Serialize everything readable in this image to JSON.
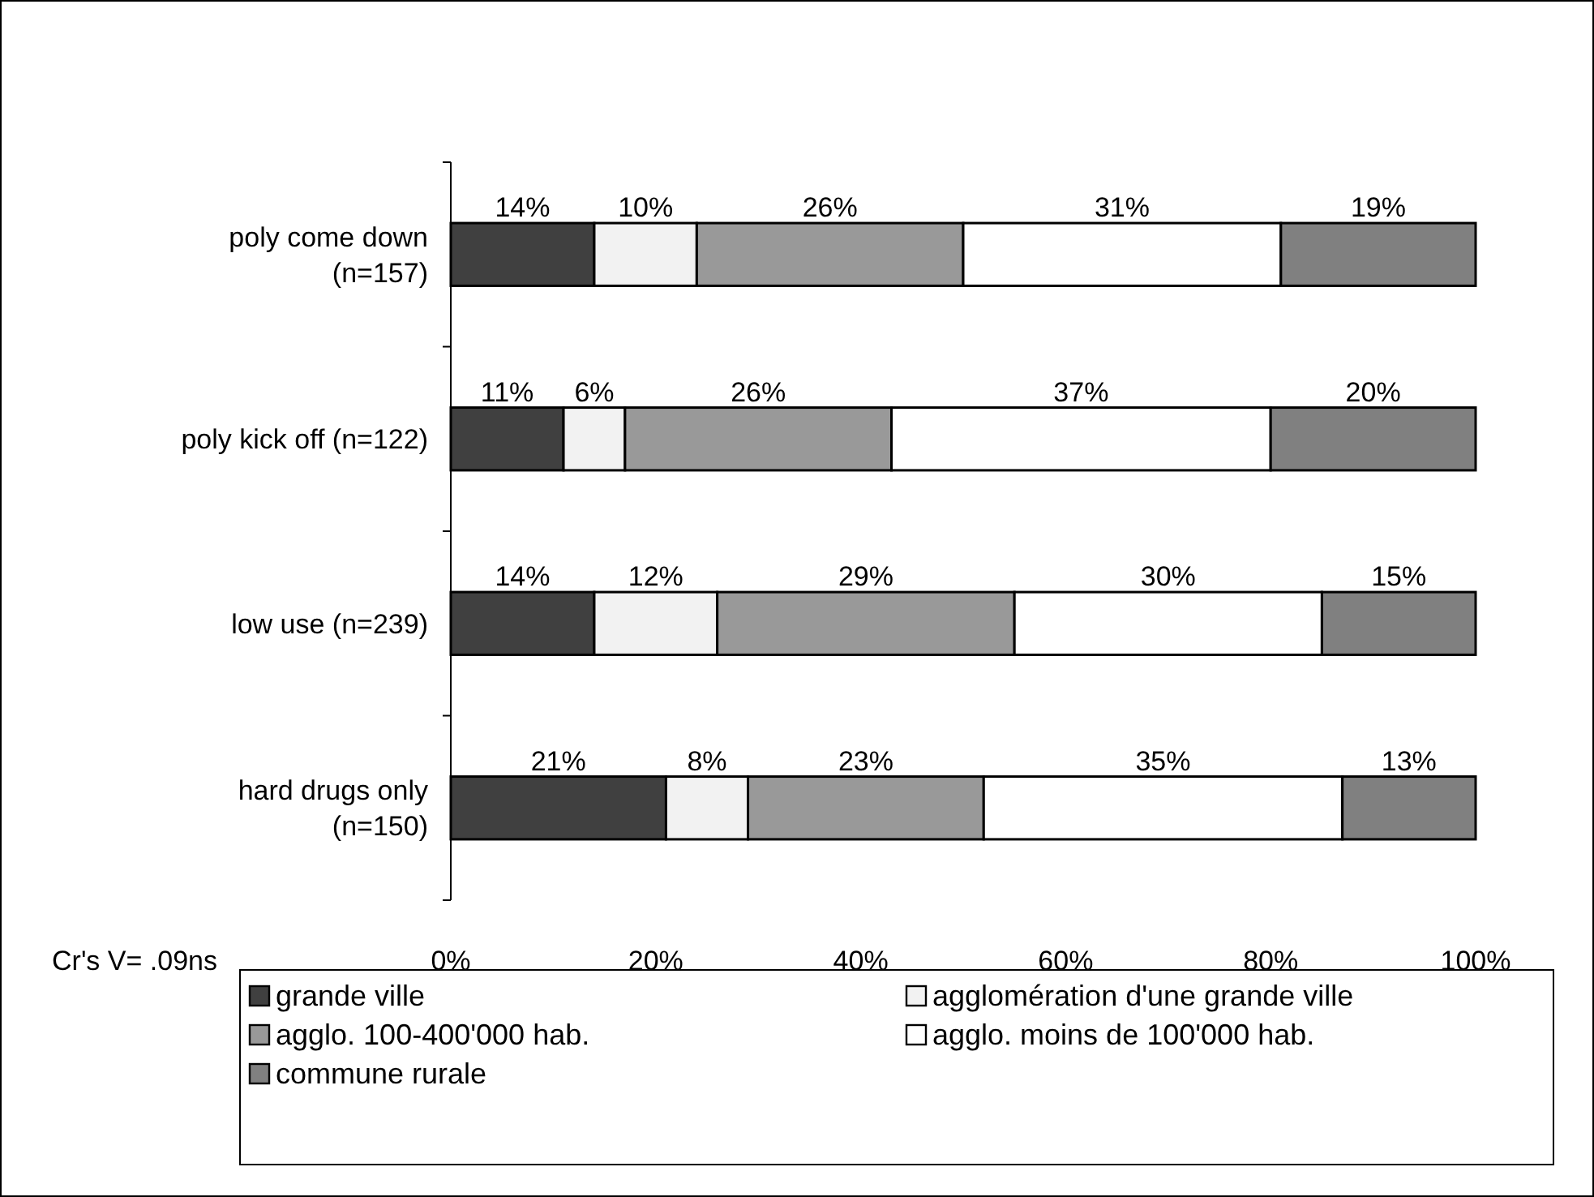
{
  "chart_data": {
    "type": "bar",
    "orientation": "horizontal",
    "stacked": true,
    "categories": [
      "poly come down (n=157)",
      "poly kick off (n=122)",
      "low use (n=239)",
      "hard drugs only (n=150)"
    ],
    "series": [
      {
        "name": "grande ville",
        "color": "#404040",
        "values": [
          14,
          11,
          14,
          21
        ],
        "value_labels": [
          "14%",
          "11%",
          "14%",
          "21%"
        ]
      },
      {
        "name": "agglomération d'une grande ville",
        "color": "#f2f2f2",
        "values": [
          10,
          6,
          12,
          8
        ],
        "value_labels": [
          "10%",
          "6%",
          "12%",
          "8%"
        ]
      },
      {
        "name": "agglo. 100-400'000 hab.",
        "color": "#999999",
        "values": [
          26,
          26,
          29,
          23
        ],
        "value_labels": [
          "26%",
          "26%",
          "29%",
          "23%"
        ]
      },
      {
        "name": "agglo. moins de 100'000 hab.",
        "color": "#ffffff",
        "values": [
          31,
          37,
          30,
          35
        ],
        "value_labels": [
          "31%",
          "37%",
          "30%",
          "35%"
        ]
      },
      {
        "name": "commune rurale",
        "color": "#808080",
        "values": [
          19,
          20,
          15,
          13
        ],
        "value_labels": [
          "19%",
          "20%",
          "15%",
          "13%"
        ]
      }
    ],
    "xlim": [
      0,
      100
    ],
    "xticks": [
      {
        "value": 0,
        "label": "0%"
      },
      {
        "value": 20,
        "label": "20%"
      },
      {
        "value": 40,
        "label": "40%"
      },
      {
        "value": 60,
        "label": "60%"
      },
      {
        "value": 80,
        "label": "80%"
      },
      {
        "value": 100,
        "label": "100%"
      }
    ],
    "legend": "bottom",
    "grid": false,
    "annotations": [
      "Cr's V= .09ns"
    ]
  }
}
